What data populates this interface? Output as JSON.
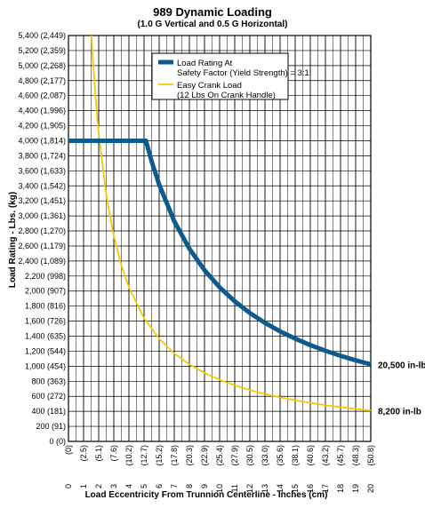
{
  "chart_data": {
    "type": "line",
    "title": "989 Dynamic Loading",
    "subtitle": "(1.0 G Vertical and 0.5 G Horizontal)",
    "xlabel": "Load Eccentricity From Trunnion Centerline - Inches (cm)",
    "ylabel": "Load Rating - Lbs. (kg)",
    "xlim": [
      0,
      20
    ],
    "ylim": [
      0,
      5400
    ],
    "grid": true,
    "legend_position": "top-right",
    "x_ticks": [
      {
        "in": "0",
        "cm": "(0)"
      },
      {
        "in": "1",
        "cm": "(2.5)"
      },
      {
        "in": "2",
        "cm": "(5.1)"
      },
      {
        "in": "3",
        "cm": "(7.6)"
      },
      {
        "in": "4",
        "cm": "(10.2)"
      },
      {
        "in": "5",
        "cm": "(12.7)"
      },
      {
        "in": "6",
        "cm": "(15.2)"
      },
      {
        "in": "7",
        "cm": "(17.8)"
      },
      {
        "in": "8",
        "cm": "(20.3)"
      },
      {
        "in": "9",
        "cm": "(22.9)"
      },
      {
        "in": "10",
        "cm": "(25.4)"
      },
      {
        "in": "11",
        "cm": "(27.9)"
      },
      {
        "in": "12",
        "cm": "(30.5)"
      },
      {
        "in": "13",
        "cm": "(33.0)"
      },
      {
        "in": "14",
        "cm": "(35.6)"
      },
      {
        "in": "15",
        "cm": "(38.1)"
      },
      {
        "in": "16",
        "cm": "(40.6)"
      },
      {
        "in": "17",
        "cm": "(43.2)"
      },
      {
        "in": "18",
        "cm": "(45.7)"
      },
      {
        "in": "19",
        "cm": "(48.3)"
      },
      {
        "in": "20",
        "cm": "(50.8)"
      }
    ],
    "y_ticks": [
      "0 (0)",
      "200 (91)",
      "400 (181)",
      "600 (272)",
      "800 (363)",
      "1,000 (454)",
      "1,200 (544)",
      "1,400 (635)",
      "1,600 (726)",
      "1,800 (816)",
      "2,000 (907)",
      "2,200 (998)",
      "2,400 (1,089)",
      "2,600 (1,179)",
      "2,800 (1,270)",
      "3,000 (1,361)",
      "3,200 (1,451)",
      "3,400 (1,542)",
      "3,600 (1,633)",
      "3,800 (1,724)",
      "4,000 (1,814)",
      "4,200 (1,905)",
      "4,400 (1,996)",
      "4,600 (2,087)",
      "4,800 (2,177)",
      "5,000 (2,268)",
      "5,200 (2,359)",
      "5,400 (2,449)"
    ],
    "series": [
      {
        "name": "Load Rating At Safety Factor (Yield Strength) = 3:1",
        "legend_lines": [
          "Load Rating At",
          "Safety Factor (Yield Strength) = 3:1"
        ],
        "color": "#0d5a8c",
        "end_label": "20,500 in-lb",
        "x": [
          0,
          5,
          5.125,
          5.5,
          6,
          7,
          8,
          9,
          10,
          11,
          12,
          13,
          14,
          15,
          16,
          17,
          18,
          19,
          20
        ],
        "y": [
          4000,
          4000,
          4000,
          3727,
          3417,
          2929,
          2563,
          2278,
          2050,
          1864,
          1708,
          1577,
          1464,
          1367,
          1281,
          1206,
          1139,
          1079,
          1025
        ]
      },
      {
        "name": "Easy Crank Load (12 Lbs On Crank Handle)",
        "legend_lines": [
          "Easy Crank Load",
          "(12 Lbs On Crank Handle)"
        ],
        "color": "#f5c800",
        "end_label": "8,200 in-lb",
        "x": [
          1.52,
          1.6,
          1.8,
          2,
          2.5,
          3,
          3.5,
          4,
          5,
          6,
          7,
          8,
          9,
          10,
          11,
          12,
          13,
          14,
          15,
          16,
          17,
          18,
          19,
          20
        ],
        "y": [
          5400,
          5125,
          4556,
          4100,
          3280,
          2733,
          2343,
          2050,
          1640,
          1367,
          1171,
          1025,
          911,
          820,
          745,
          683,
          631,
          586,
          547,
          513,
          482,
          456,
          432,
          410
        ]
      }
    ]
  }
}
